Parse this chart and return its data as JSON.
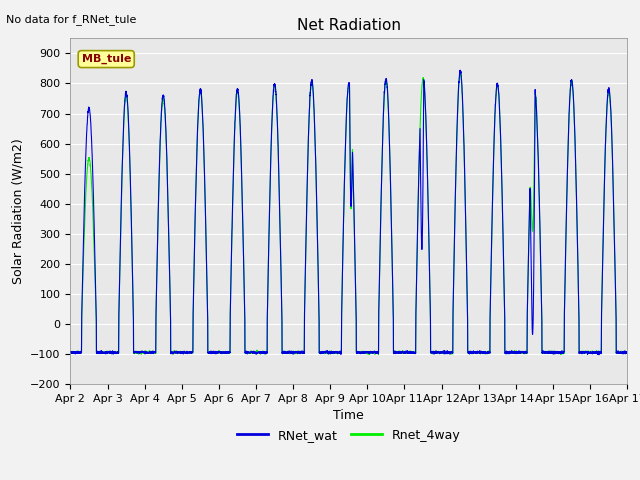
{
  "title": "Net Radiation",
  "xlabel": "Time",
  "ylabel": "Solar Radiation (W/m2)",
  "annotation_text": "No data for f_RNet_tule",
  "legend_label_text": "MB_tule",
  "ylim": [
    -200,
    950
  ],
  "yticks": [
    -200,
    -100,
    0,
    100,
    200,
    300,
    400,
    500,
    600,
    700,
    800,
    900
  ],
  "line1_label": "RNet_wat",
  "line1_color": "#0000DD",
  "line2_label": "Rnet_4way",
  "line2_color": "#00EE00",
  "background_color": "#E8E8E8",
  "grid_color": "#FFFFFF",
  "num_days": 15,
  "pts_per_day": 288,
  "title_fontsize": 11,
  "label_fontsize": 9,
  "tick_fontsize": 8
}
